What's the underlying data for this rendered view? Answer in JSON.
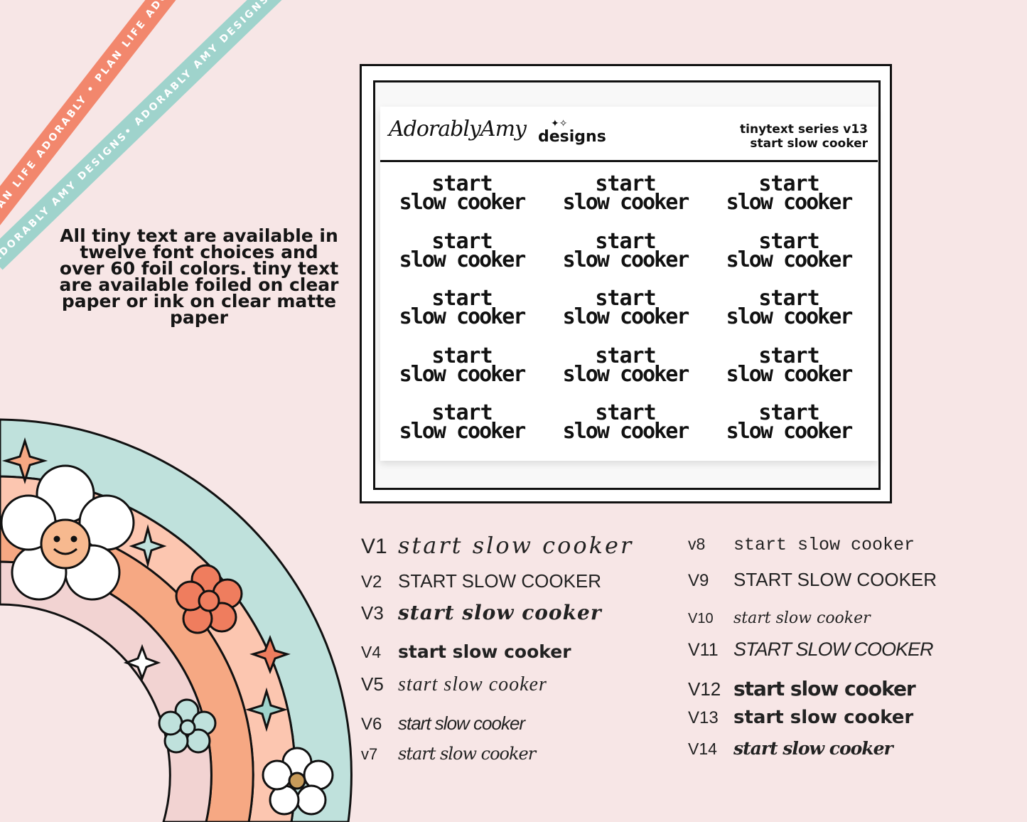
{
  "ribbons": {
    "coral_text": "PLAN LIFE ADORABLY • PLAN LIFE ADORABLY • PLAN LIFE ADORABLY • PLAN LIFE ADORABLY •",
    "teal_text": "ADORABLY AMY DESIGNS• ADORABLY AMY DESIGNS• ADORABLY AMY DESIGNS• ADORABLY AMY DESIGNS•"
  },
  "info_text": "All tiny text are available in twelve font choices and over 60 foil colors.  tiny text are available foiled on clear paper or ink on clear matte paper",
  "sheet": {
    "brand_script": "AdorablyAmy",
    "brand_designs": "designs",
    "series_line1": "tinytext series v13",
    "series_line2": "start slow cooker",
    "sticker_line1": "start",
    "sticker_line2": "slow cooker",
    "sticker_count": 15
  },
  "font_versions_left": [
    {
      "label": "V1",
      "sample": "start slow cooker"
    },
    {
      "label": "V2",
      "sample": "START SLOW COOKER"
    },
    {
      "label": "V3",
      "sample": "start slow cooker"
    },
    {
      "label": "V4",
      "sample": "start slow cooker"
    },
    {
      "label": "V5",
      "sample": "start slow cooker"
    },
    {
      "label": "V6",
      "sample": "start slow cooker"
    },
    {
      "label": "v7",
      "sample": "start slow cooker"
    }
  ],
  "font_versions_right": [
    {
      "label": "v8",
      "sample": "start slow cooker"
    },
    {
      "label": "V9",
      "sample": "START SLOW COOKER"
    },
    {
      "label": "V10",
      "sample": "start slow cooker"
    },
    {
      "label": "V11",
      "sample": "START SLOW COOKER"
    },
    {
      "label": "V12",
      "sample": "start slow cooker"
    },
    {
      "label": "V13",
      "sample": "start slow cooker"
    },
    {
      "label": "V14",
      "sample": "start slow cooker"
    }
  ],
  "colors": {
    "background": "#f7e6e6",
    "coral": "#f2876d",
    "teal": "#9fd3cc",
    "peach": "#f6a883",
    "light_peach": "#fcc6b0",
    "pink": "#f2d3d2",
    "flower_orange": "#ef7d5e"
  }
}
